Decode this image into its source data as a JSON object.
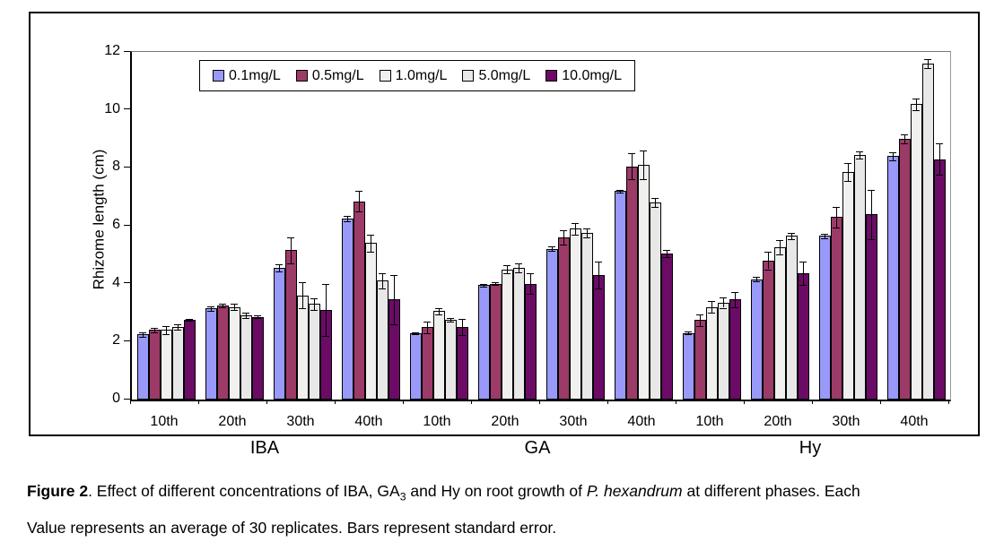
{
  "figure": {
    "caption_line1_parts": [
      {
        "text": "Figure 2",
        "bold": true
      },
      {
        "text": ". Effect of different concentrations of IBA, GA"
      },
      {
        "text": "3",
        "sub": true
      },
      {
        "text": " and Hy on root growth of "
      },
      {
        "text": "P. hexandrum",
        "italic": true
      },
      {
        "text": " at different phases. Each"
      }
    ],
    "caption_line2": "Value represents an average of 30 replicates. Bars represent standard error."
  },
  "chart_data": {
    "type": "bar",
    "title": "",
    "ylabel": "Rhizome length (cm)",
    "xlabel": "",
    "ylim": [
      0,
      12
    ],
    "yticks": [
      0,
      2,
      4,
      6,
      8,
      10,
      12
    ],
    "grid": false,
    "legend_position": "top-left-inside",
    "groups": [
      "IBA",
      "GA",
      "Hy"
    ],
    "phases": [
      "10th",
      "20th",
      "30th",
      "40th"
    ],
    "categories": [
      "IBA-10th",
      "IBA-20th",
      "IBA-30th",
      "IBA-40th",
      "GA-10th",
      "GA-20th",
      "GA-30th",
      "GA-40th",
      "Hy-10th",
      "Hy-20th",
      "Hy-30th",
      "Hy-40th"
    ],
    "series": [
      {
        "name": "0.1mg/L",
        "color": "#9999FA",
        "values": [
          2.25,
          3.15,
          4.55,
          6.25,
          2.3,
          3.95,
          5.2,
          7.2,
          2.3,
          4.15,
          5.65,
          8.4
        ],
        "errors": [
          0.08,
          0.08,
          0.12,
          0.1,
          0.03,
          0.05,
          0.08,
          0.05,
          0.05,
          0.08,
          0.08,
          0.15
        ]
      },
      {
        "name": "0.5mg/L",
        "color": "#9C3A68",
        "values": [
          2.4,
          3.25,
          5.15,
          6.85,
          2.5,
          4.0,
          5.6,
          8.05,
          2.75,
          4.8,
          6.3,
          9.0
        ],
        "errors": [
          0.08,
          0.05,
          0.45,
          0.35,
          0.2,
          0.05,
          0.25,
          0.45,
          0.2,
          0.3,
          0.35,
          0.15
        ]
      },
      {
        "name": "1.0mg/L",
        "color": "#F0F0EE",
        "values": [
          2.4,
          3.2,
          3.6,
          5.4,
          3.05,
          4.5,
          5.9,
          8.1,
          3.2,
          5.25,
          7.85,
          10.2
        ],
        "errors": [
          0.15,
          0.1,
          0.45,
          0.3,
          0.12,
          0.15,
          0.2,
          0.5,
          0.2,
          0.25,
          0.3,
          0.2
        ]
      },
      {
        "name": "5.0mg/L",
        "color": "#E8E8E8",
        "values": [
          2.5,
          2.9,
          3.3,
          4.1,
          2.75,
          4.55,
          5.75,
          6.8,
          3.35,
          5.65,
          8.45,
          11.6
        ],
        "errors": [
          0.1,
          0.1,
          0.2,
          0.25,
          0.05,
          0.15,
          0.15,
          0.15,
          0.18,
          0.1,
          0.12,
          0.15
        ]
      },
      {
        "name": "10.0mg/L",
        "color": "#6B0B66",
        "values": [
          2.75,
          2.85,
          3.1,
          3.45,
          2.5,
          4.0,
          4.3,
          5.05,
          3.45,
          4.35,
          6.4,
          8.3
        ],
        "errors": [
          0.03,
          0.05,
          0.9,
          0.85,
          0.28,
          0.35,
          0.45,
          0.12,
          0.25,
          0.4,
          0.85,
          0.55
        ]
      }
    ]
  }
}
